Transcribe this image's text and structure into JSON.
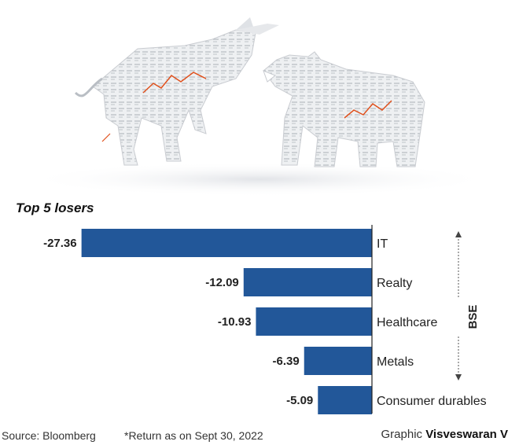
{
  "chart_data": {
    "type": "bar",
    "orientation": "horizontal",
    "title": "Top 5 losers",
    "categories": [
      "IT",
      "Realty",
      "Healthcare",
      "Metals",
      "Consumer durables"
    ],
    "values": [
      -27.36,
      -12.09,
      -10.93,
      -6.39,
      -5.09
    ],
    "value_labels": [
      "-27.36",
      "-12.09",
      "-10.93",
      "-6.39",
      "-5.09"
    ],
    "side_label": "BSE",
    "bar_color": "#225799",
    "xlim": [
      -30,
      0
    ]
  },
  "footer": {
    "source": "Source: Bloomberg",
    "note": "*Return as on Sept 30, 2022",
    "credit_prefix": "Graphic",
    "credit_name": "Visveswaran V"
  },
  "hero": {
    "description_icon": "bull-and-bear-newspaper-sculpture"
  }
}
